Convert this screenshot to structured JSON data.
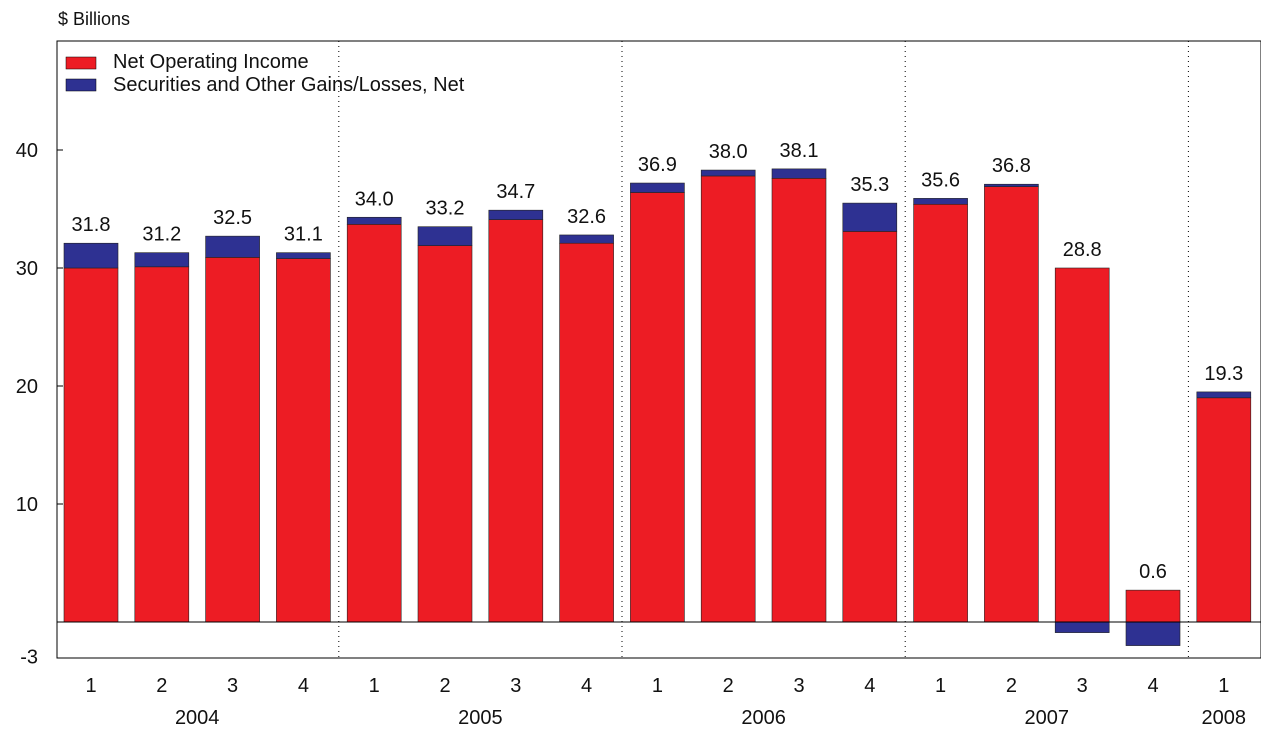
{
  "chart_data": {
    "type": "bar",
    "stacked": true,
    "ylabel": "$ Billions",
    "ylim": [
      -3,
      43
    ],
    "yticks": [
      10,
      20,
      30,
      40
    ],
    "ytick_labels": [
      "10",
      "20",
      "30",
      "40"
    ],
    "ymin_label": "-3",
    "categories": [
      "1",
      "2",
      "3",
      "4",
      "1",
      "2",
      "3",
      "4",
      "1",
      "2",
      "3",
      "4",
      "1",
      "2",
      "3",
      "4",
      "1"
    ],
    "years": [
      {
        "label": "2004",
        "start": 0,
        "count": 4
      },
      {
        "label": "2005",
        "start": 4,
        "count": 4
      },
      {
        "label": "2006",
        "start": 8,
        "count": 4
      },
      {
        "label": "2007",
        "start": 12,
        "count": 4
      },
      {
        "label": "2008",
        "start": 16,
        "count": 1
      }
    ],
    "series": [
      {
        "name": "Net Operating Income",
        "color": "#ed1c24",
        "values": [
          30.0,
          30.1,
          30.9,
          30.8,
          33.7,
          31.9,
          34.1,
          32.1,
          36.4,
          37.8,
          37.6,
          33.1,
          35.4,
          36.9,
          30.0,
          2.7,
          19.0
        ]
      },
      {
        "name": "Securities and Other Gains/Losses, Net",
        "color": "#2e3192",
        "values": [
          2.1,
          1.2,
          1.8,
          0.5,
          0.6,
          1.6,
          0.8,
          0.7,
          0.8,
          0.5,
          0.8,
          2.4,
          0.5,
          0.2,
          -0.9,
          -2.0,
          0.5
        ]
      }
    ],
    "totals": [
      "31.8",
      "31.2",
      "32.5",
      "31.1",
      "34.0",
      "33.2",
      "34.7",
      "32.6",
      "36.9",
      "38.0",
      "38.1",
      "35.3",
      "35.6",
      "36.8",
      "28.8",
      "0.6",
      "19.3"
    ],
    "legend_position": "top-left",
    "grid": false
  }
}
